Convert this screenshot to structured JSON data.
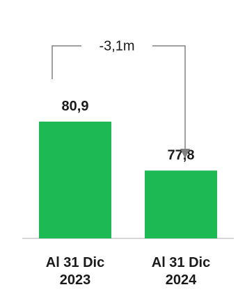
{
  "chart_data": {
    "type": "bar",
    "categories": [
      "Al 31 Dic\n2023",
      "Al 31 Dic\n2024"
    ],
    "values": [
      80.9,
      77.8
    ],
    "value_labels": [
      "80,9",
      "77,8"
    ],
    "annotation": {
      "label": "-3,1m",
      "from_category": 0,
      "to_category": 1
    },
    "colors": {
      "bar": "#1db954",
      "text": "#1a1a1a",
      "axis": "#c8c8c8",
      "connector": "#808080"
    },
    "ylim": [
      73.5,
      82
    ],
    "legend": "none",
    "grid": false
  }
}
